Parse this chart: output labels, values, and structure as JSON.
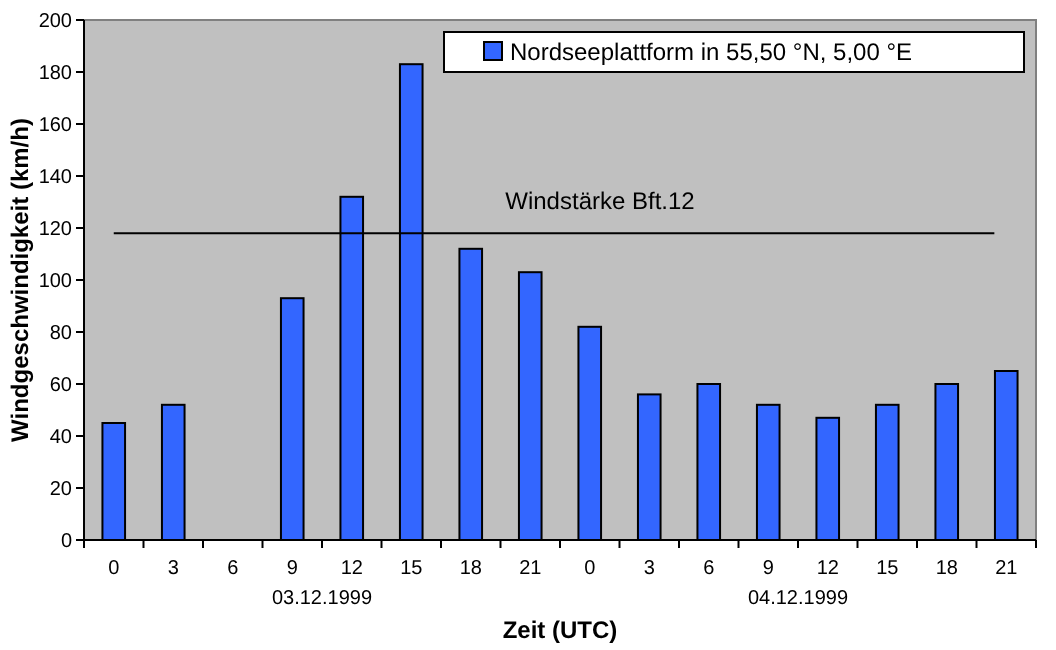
{
  "chart_data": {
    "type": "bar",
    "xlabel": "Zeit (UTC)",
    "ylabel": "Windgeschwindigkeit (km/h)",
    "categories": [
      "0",
      "3",
      "6",
      "9",
      "12",
      "15",
      "18",
      "21",
      "0",
      "3",
      "6",
      "9",
      "12",
      "15",
      "18",
      "21"
    ],
    "series": [
      {
        "name": "Nordseeplattform in 55,50 °N, 5,00 °E",
        "color": "#3366ff",
        "values": [
          45,
          52,
          null,
          93,
          132,
          183,
          112,
          103,
          82,
          56,
          60,
          52,
          47,
          52,
          60,
          65
        ]
      }
    ],
    "ylim": [
      0,
      200
    ],
    "yticks": [
      0,
      20,
      40,
      60,
      80,
      100,
      120,
      140,
      160,
      180,
      200
    ],
    "ref_lines": [
      {
        "axis": "y",
        "value": 118,
        "label": "Windstärke Bft.12",
        "color": "#000000"
      }
    ],
    "annotations": [
      "03.12.1999",
      "04.12.1999"
    ],
    "legend": "top right",
    "grid": false
  }
}
